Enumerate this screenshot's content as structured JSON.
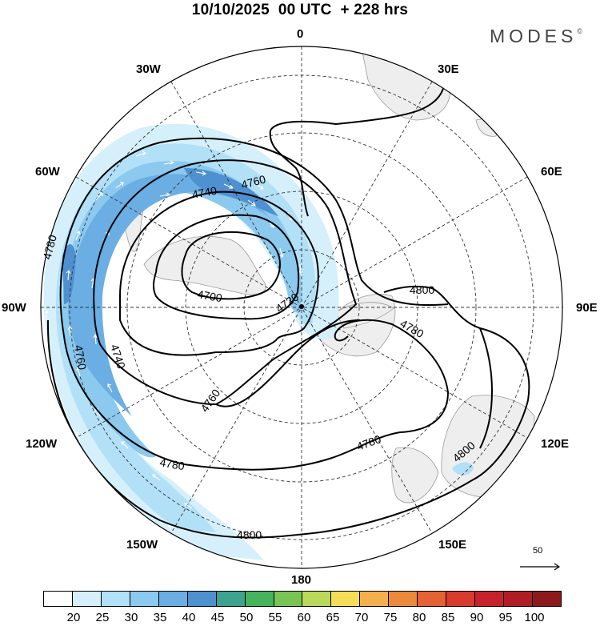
{
  "header": {
    "title": "10/10/2025  00 UTC  + 228 hrs",
    "brand": "MODES",
    "brand_mark": "©"
  },
  "longitude_labels": {
    "lon_0": "0",
    "lon_30e": "30E",
    "lon_60e": "60E",
    "lon_90e": "90E",
    "lon_120e": "120E",
    "lon_150e": "150E",
    "lon_180": "180",
    "lon_150w": "150W",
    "lon_120w": "120W",
    "lon_90w": "90W",
    "lon_60w": "60W",
    "lon_30w": "30W"
  },
  "contour_labels": {
    "c4700": "4700",
    "c4720": "4720",
    "c4740_a": "4740",
    "c4740_b": "4740",
    "c4760_a": "4760",
    "c4760_b": "4760",
    "c4760_c": "4760",
    "c4780_a": "4780",
    "c4780_b": "4780",
    "c4780_c": "4780",
    "c4780_d": "4780",
    "c4800_a": "4800",
    "c4800_b": "4800",
    "c4800_c": "4800"
  },
  "vector_reference": {
    "label": "50"
  },
  "colorbar": {
    "ticks": [
      "20",
      "25",
      "30",
      "35",
      "40",
      "45",
      "50",
      "55",
      "60",
      "65",
      "70",
      "75",
      "80",
      "85",
      "90",
      "95",
      "100"
    ],
    "colors": [
      "#ffffff",
      "#d5f0fb",
      "#b1e0f7",
      "#8cc9ee",
      "#6aaee3",
      "#4f90d1",
      "#3da38f",
      "#45b35a",
      "#79c455",
      "#bad85a",
      "#f6dd57",
      "#f3b04c",
      "#ec8a3b",
      "#e46233",
      "#d93a2e",
      "#c7222c",
      "#b01d27",
      "#8c1a1c"
    ]
  }
}
